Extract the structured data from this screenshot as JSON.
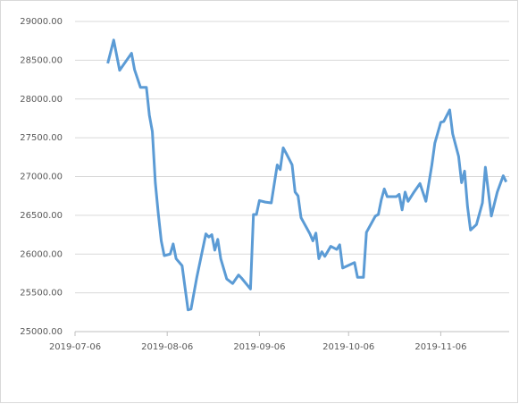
{
  "chart_data": {
    "type": "line",
    "x": [
      "2019-07-17",
      "2019-07-19",
      "2019-07-21",
      "2019-07-25",
      "2019-07-26",
      "2019-07-28",
      "2019-07-30",
      "2019-07-31",
      "2019-08-01",
      "2019-08-02",
      "2019-08-03",
      "2019-08-04",
      "2019-08-05",
      "2019-08-07",
      "2019-08-08",
      "2019-08-09",
      "2019-08-11",
      "2019-08-13",
      "2019-08-14",
      "2019-08-16",
      "2019-08-19",
      "2019-08-20",
      "2019-08-21",
      "2019-08-22",
      "2019-08-23",
      "2019-08-24",
      "2019-08-26",
      "2019-08-28",
      "2019-08-30",
      "2019-08-31",
      "2019-09-03",
      "2019-09-04",
      "2019-09-05",
      "2019-09-06",
      "2019-09-08",
      "2019-09-10",
      "2019-09-12",
      "2019-09-13",
      "2019-09-14",
      "2019-09-15",
      "2019-09-17",
      "2019-09-18",
      "2019-09-19",
      "2019-09-20",
      "2019-09-21",
      "2019-09-23",
      "2019-09-24",
      "2019-09-25",
      "2019-09-26",
      "2019-09-27",
      "2019-09-28",
      "2019-09-30",
      "2019-10-02",
      "2019-10-03",
      "2019-10-04",
      "2019-10-08",
      "2019-10-09",
      "2019-10-11",
      "2019-10-12",
      "2019-10-15",
      "2019-10-16",
      "2019-10-17",
      "2019-10-18",
      "2019-10-19",
      "2019-10-22",
      "2019-10-23",
      "2019-10-24",
      "2019-10-25",
      "2019-10-26",
      "2019-10-28",
      "2019-10-30",
      "2019-11-01",
      "2019-11-03",
      "2019-11-04",
      "2019-11-06",
      "2019-11-07",
      "2019-11-09",
      "2019-11-10",
      "2019-11-12",
      "2019-11-13",
      "2019-11-14",
      "2019-11-15",
      "2019-11-16",
      "2019-11-18",
      "2019-11-20",
      "2019-11-21",
      "2019-11-23",
      "2019-11-25",
      "2019-11-27",
      "2019-11-28"
    ],
    "series": [
      {
        "color": "#5b9bd5",
        "values": [
          28460,
          28760,
          28370,
          28590,
          28380,
          28150,
          28150,
          27790,
          27580,
          26920,
          26520,
          26170,
          25980,
          26000,
          26130,
          25940,
          25850,
          25280,
          25290,
          25710,
          26260,
          26220,
          26250,
          26050,
          26190,
          25940,
          25680,
          25620,
          25730,
          25690,
          25550,
          26510,
          26510,
          26690,
          26670,
          26660,
          27150,
          27090,
          27370,
          27300,
          27150,
          26800,
          26750,
          26470,
          26400,
          26260,
          26170,
          26270,
          25940,
          26030,
          25970,
          26100,
          26060,
          26120,
          25820,
          25890,
          25700,
          25700,
          26280,
          26490,
          26510,
          26700,
          26840,
          26740,
          26740,
          26770,
          26570,
          26800,
          26680,
          26800,
          26910,
          26680,
          27150,
          27430,
          27700,
          27710,
          27860,
          27550,
          27260,
          26920,
          27070,
          26610,
          26310,
          26380,
          26660,
          27120,
          26490,
          26800,
          27010,
          26930
        ]
      }
    ],
    "xlim": [
      "2019-07-06",
      "2019-11-29"
    ],
    "xticks": [
      "2019-07-06",
      "2019-08-06",
      "2019-09-06",
      "2019-10-06",
      "2019-11-06"
    ],
    "ylim": [
      25000,
      29000
    ],
    "yticks": [
      {
        "value": 25000,
        "label": "25000.00"
      },
      {
        "value": 25500,
        "label": "25500.00"
      },
      {
        "value": 26000,
        "label": "26000.00"
      },
      {
        "value": 26500,
        "label": "26500.00"
      },
      {
        "value": 27000,
        "label": "27000.00"
      },
      {
        "value": 27500,
        "label": "27500.00"
      },
      {
        "value": 28000,
        "label": "28000.00"
      },
      {
        "value": 28500,
        "label": "28500.00"
      },
      {
        "value": 29000,
        "label": "29000.00"
      }
    ],
    "grid": true
  }
}
